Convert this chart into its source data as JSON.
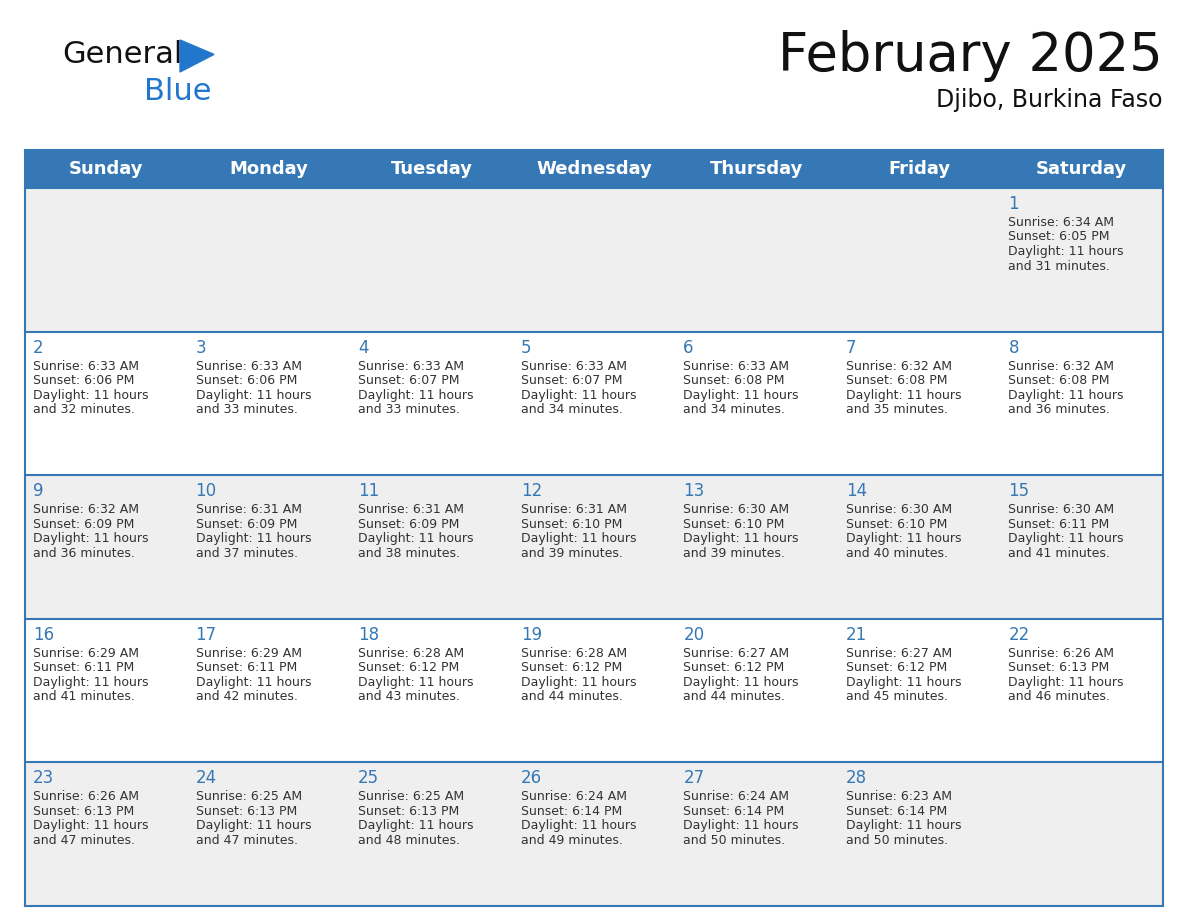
{
  "title": "February 2025",
  "subtitle": "Djibo, Burkina Faso",
  "days_of_week": [
    "Sunday",
    "Monday",
    "Tuesday",
    "Wednesday",
    "Thursday",
    "Friday",
    "Saturday"
  ],
  "header_bg_color": "#3578b5",
  "header_text_color": "#ffffff",
  "cell_bg_color_light": "#efefef",
  "cell_bg_color_white": "#ffffff",
  "day_num_color": "#3578b5",
  "info_text_color": "#333333",
  "border_color": "#3578b5",
  "calendar": [
    [
      null,
      null,
      null,
      null,
      null,
      null,
      1
    ],
    [
      2,
      3,
      4,
      5,
      6,
      7,
      8
    ],
    [
      9,
      10,
      11,
      12,
      13,
      14,
      15
    ],
    [
      16,
      17,
      18,
      19,
      20,
      21,
      22
    ],
    [
      23,
      24,
      25,
      26,
      27,
      28,
      null
    ]
  ],
  "day_data": {
    "1": {
      "sunrise": "6:34 AM",
      "sunset": "6:05 PM",
      "daylight_hours": "11 hours",
      "daylight_min": "and 31 minutes."
    },
    "2": {
      "sunrise": "6:33 AM",
      "sunset": "6:06 PM",
      "daylight_hours": "11 hours",
      "daylight_min": "and 32 minutes."
    },
    "3": {
      "sunrise": "6:33 AM",
      "sunset": "6:06 PM",
      "daylight_hours": "11 hours",
      "daylight_min": "and 33 minutes."
    },
    "4": {
      "sunrise": "6:33 AM",
      "sunset": "6:07 PM",
      "daylight_hours": "11 hours",
      "daylight_min": "and 33 minutes."
    },
    "5": {
      "sunrise": "6:33 AM",
      "sunset": "6:07 PM",
      "daylight_hours": "11 hours",
      "daylight_min": "and 34 minutes."
    },
    "6": {
      "sunrise": "6:33 AM",
      "sunset": "6:08 PM",
      "daylight_hours": "11 hours",
      "daylight_min": "and 34 minutes."
    },
    "7": {
      "sunrise": "6:32 AM",
      "sunset": "6:08 PM",
      "daylight_hours": "11 hours",
      "daylight_min": "and 35 minutes."
    },
    "8": {
      "sunrise": "6:32 AM",
      "sunset": "6:08 PM",
      "daylight_hours": "11 hours",
      "daylight_min": "and 36 minutes."
    },
    "9": {
      "sunrise": "6:32 AM",
      "sunset": "6:09 PM",
      "daylight_hours": "11 hours",
      "daylight_min": "and 36 minutes."
    },
    "10": {
      "sunrise": "6:31 AM",
      "sunset": "6:09 PM",
      "daylight_hours": "11 hours",
      "daylight_min": "and 37 minutes."
    },
    "11": {
      "sunrise": "6:31 AM",
      "sunset": "6:09 PM",
      "daylight_hours": "11 hours",
      "daylight_min": "and 38 minutes."
    },
    "12": {
      "sunrise": "6:31 AM",
      "sunset": "6:10 PM",
      "daylight_hours": "11 hours",
      "daylight_min": "and 39 minutes."
    },
    "13": {
      "sunrise": "6:30 AM",
      "sunset": "6:10 PM",
      "daylight_hours": "11 hours",
      "daylight_min": "and 39 minutes."
    },
    "14": {
      "sunrise": "6:30 AM",
      "sunset": "6:10 PM",
      "daylight_hours": "11 hours",
      "daylight_min": "and 40 minutes."
    },
    "15": {
      "sunrise": "6:30 AM",
      "sunset": "6:11 PM",
      "daylight_hours": "11 hours",
      "daylight_min": "and 41 minutes."
    },
    "16": {
      "sunrise": "6:29 AM",
      "sunset": "6:11 PM",
      "daylight_hours": "11 hours",
      "daylight_min": "and 41 minutes."
    },
    "17": {
      "sunrise": "6:29 AM",
      "sunset": "6:11 PM",
      "daylight_hours": "11 hours",
      "daylight_min": "and 42 minutes."
    },
    "18": {
      "sunrise": "6:28 AM",
      "sunset": "6:12 PM",
      "daylight_hours": "11 hours",
      "daylight_min": "and 43 minutes."
    },
    "19": {
      "sunrise": "6:28 AM",
      "sunset": "6:12 PM",
      "daylight_hours": "11 hours",
      "daylight_min": "and 44 minutes."
    },
    "20": {
      "sunrise": "6:27 AM",
      "sunset": "6:12 PM",
      "daylight_hours": "11 hours",
      "daylight_min": "and 44 minutes."
    },
    "21": {
      "sunrise": "6:27 AM",
      "sunset": "6:12 PM",
      "daylight_hours": "11 hours",
      "daylight_min": "and 45 minutes."
    },
    "22": {
      "sunrise": "6:26 AM",
      "sunset": "6:13 PM",
      "daylight_hours": "11 hours",
      "daylight_min": "and 46 minutes."
    },
    "23": {
      "sunrise": "6:26 AM",
      "sunset": "6:13 PM",
      "daylight_hours": "11 hours",
      "daylight_min": "and 47 minutes."
    },
    "24": {
      "sunrise": "6:25 AM",
      "sunset": "6:13 PM",
      "daylight_hours": "11 hours",
      "daylight_min": "and 47 minutes."
    },
    "25": {
      "sunrise": "6:25 AM",
      "sunset": "6:13 PM",
      "daylight_hours": "11 hours",
      "daylight_min": "and 48 minutes."
    },
    "26": {
      "sunrise": "6:24 AM",
      "sunset": "6:14 PM",
      "daylight_hours": "11 hours",
      "daylight_min": "and 49 minutes."
    },
    "27": {
      "sunrise": "6:24 AM",
      "sunset": "6:14 PM",
      "daylight_hours": "11 hours",
      "daylight_min": "and 50 minutes."
    },
    "28": {
      "sunrise": "6:23 AM",
      "sunset": "6:14 PM",
      "daylight_hours": "11 hours",
      "daylight_min": "and 50 minutes."
    }
  },
  "logo_general_color": "#111111",
  "logo_blue_color": "#2277cc",
  "logo_triangle_color": "#2277cc",
  "title_fontsize": 38,
  "subtitle_fontsize": 17,
  "header_fontsize": 13,
  "day_num_fontsize": 12,
  "info_fontsize": 9
}
